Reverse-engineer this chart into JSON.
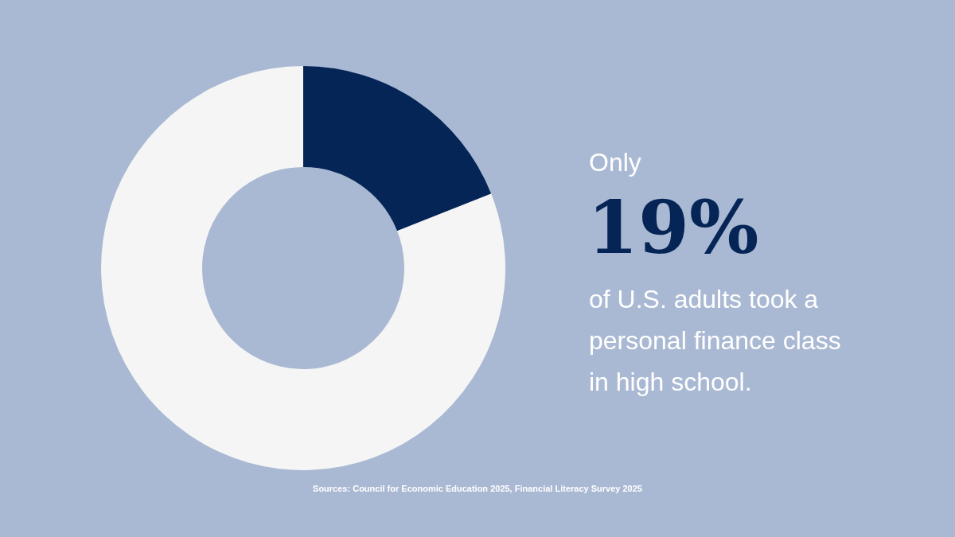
{
  "chart_data": {
    "type": "donut",
    "categories": [
      null,
      null
    ],
    "values": [
      19,
      81
    ],
    "colors": [
      "#062557",
      "#f5f5f5"
    ],
    "value_labels": [
      "19%",
      null
    ],
    "legend": false,
    "annotations": [
      "Only",
      "of U.S. adults took a personal finance class in high school.",
      "Sources: Council for Economic Education 2025, Financial Literacy Survey 2025"
    ]
  }
}
